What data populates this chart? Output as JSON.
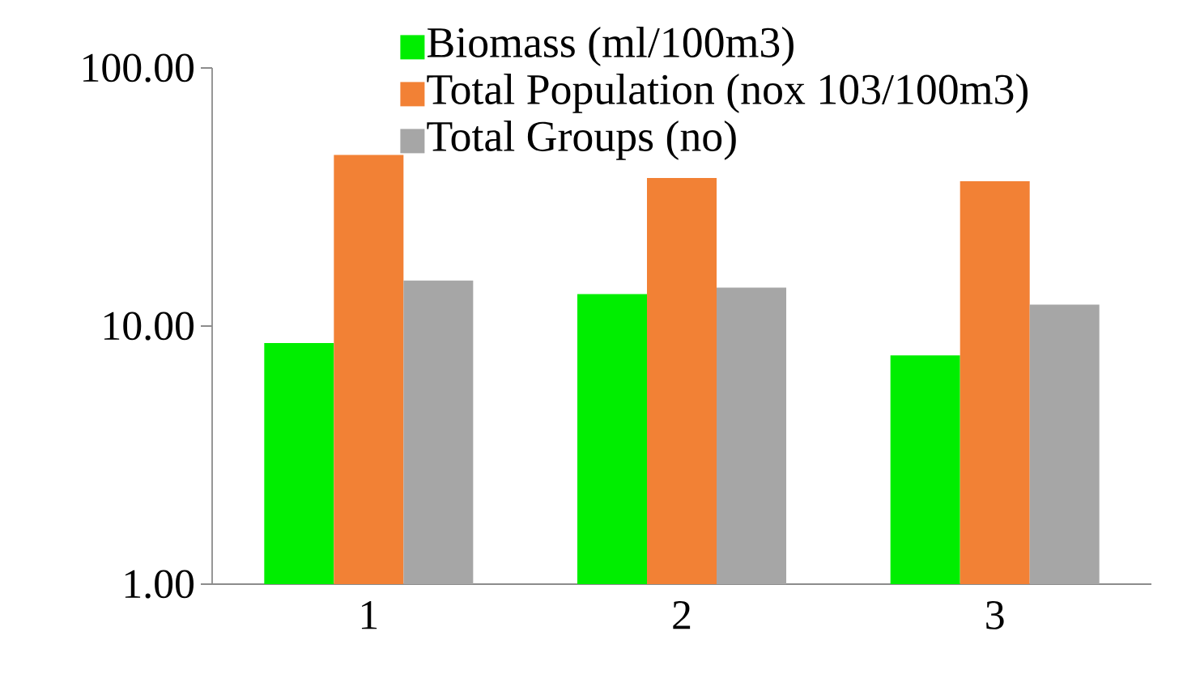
{
  "chart_data": {
    "type": "bar",
    "categories": [
      "1",
      "2",
      "3"
    ],
    "series": [
      {
        "name": "Biomass (ml/100m3)",
        "color": "#00ee00",
        "values": [
          8.6,
          13.3,
          7.7
        ]
      },
      {
        "name": "Total Population (nox 103/100m3)",
        "color": "#f28135",
        "values": [
          46,
          37.5,
          36.4
        ]
      },
      {
        "name": "Total Groups (no)",
        "color": "#a6a6a6",
        "values": [
          15.0,
          14.1,
          12.1
        ]
      }
    ],
    "log": "y",
    "ylim": [
      1,
      100
    ],
    "yticks": [
      {
        "value": 1,
        "label": "1.00"
      },
      {
        "value": 10,
        "label": "10.00"
      },
      {
        "value": 100,
        "label": "100.00"
      }
    ],
    "legend": "top"
  }
}
